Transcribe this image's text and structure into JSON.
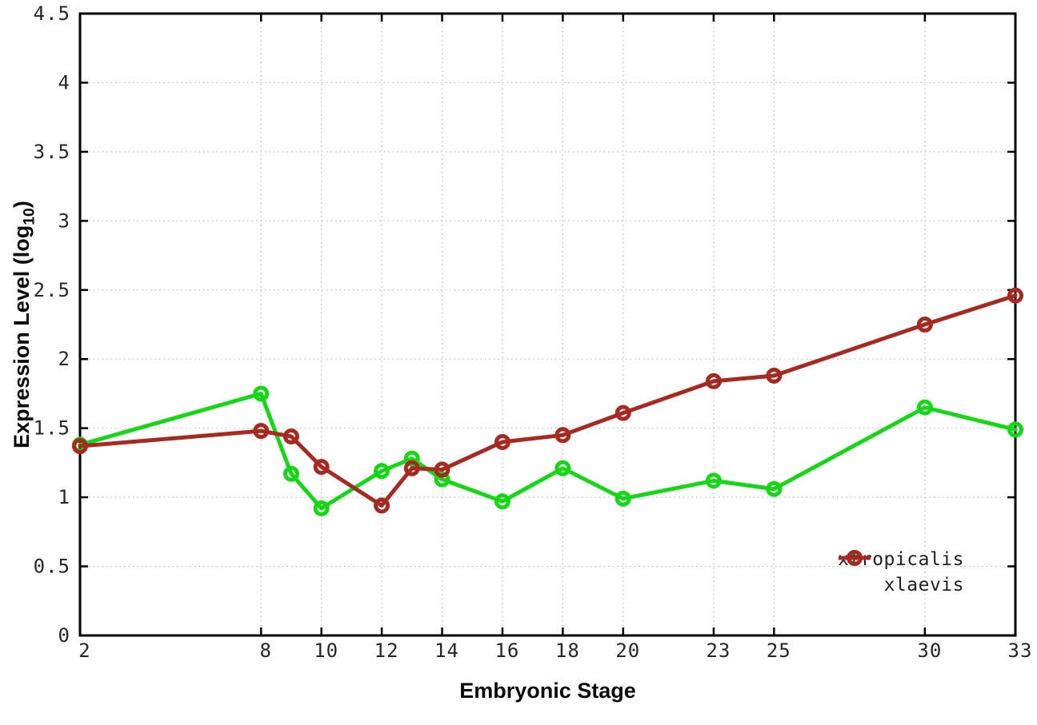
{
  "page": {
    "background": "#ffffff"
  },
  "chart_data": {
    "type": "line",
    "title": "",
    "xlabel": "Embryonic Stage",
    "ylabel_pre": "Expression Level (log",
    "ylabel_sub": "10",
    "ylabel_post": ")",
    "xlim": [
      2,
      33
    ],
    "ylim": [
      0,
      4.5
    ],
    "x_ticks": [
      2,
      8,
      10,
      12,
      14,
      16,
      18,
      20,
      23,
      25,
      30,
      33
    ],
    "x_tick_labels": [
      "2",
      "8",
      "10",
      "12",
      "14",
      "16",
      "18",
      "20",
      "23",
      "25",
      "30",
      "33"
    ],
    "y_ticks": [
      0,
      0.5,
      1,
      1.5,
      2,
      2.5,
      3,
      3.5,
      4,
      4.5
    ],
    "y_tick_labels": [
      "0",
      "0.5",
      "1",
      "1.5",
      "2",
      "2.5",
      "3",
      "3.5",
      "4",
      "4.5"
    ],
    "grid": true,
    "grid_style": "dotted",
    "legend_position": "inside-bottom-right",
    "marker": "open-circle",
    "x": [
      2,
      8,
      9,
      10,
      12,
      13,
      14,
      16,
      18,
      20,
      23,
      25,
      30,
      33
    ],
    "series": [
      {
        "name": "xtropicalis",
        "color": "#17d517",
        "values": [
          1.38,
          1.75,
          1.17,
          0.92,
          1.19,
          1.28,
          1.13,
          0.97,
          1.21,
          0.99,
          1.12,
          1.06,
          1.65,
          1.49
        ]
      },
      {
        "name": "xlaevis",
        "color": "#a52b22",
        "values": [
          1.37,
          1.48,
          1.44,
          1.22,
          0.94,
          1.21,
          1.2,
          1.4,
          1.45,
          1.61,
          1.84,
          1.88,
          2.25,
          2.46
        ]
      }
    ],
    "axis_color": "#000000",
    "grid_color": "#bbbbbb",
    "tick_text_color": "#262626"
  }
}
